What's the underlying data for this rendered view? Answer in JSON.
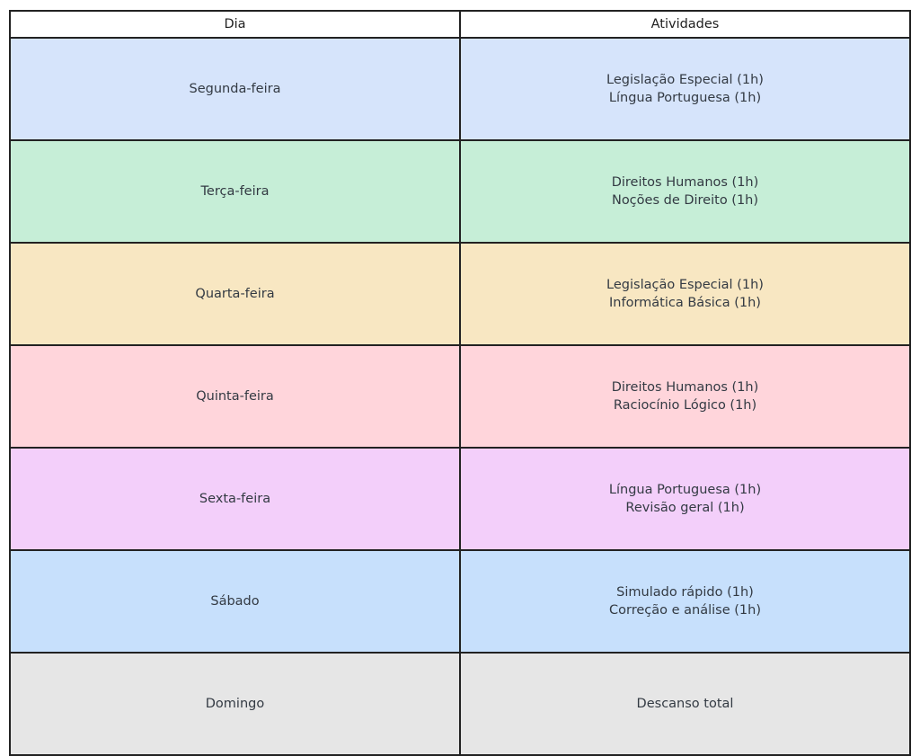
{
  "table": {
    "headers": {
      "dia": "Dia",
      "atividades": "Atividades"
    },
    "rows": [
      {
        "day": "Segunda-feira",
        "activities": [
          "Legislação Especial (1h)",
          "Língua Portuguesa (1h)"
        ],
        "bg": "#d6e4fb"
      },
      {
        "day": "Terça-feira",
        "activities": [
          "Direitos Humanos (1h)",
          "Noções de Direito (1h)"
        ],
        "bg": "#c6eed7"
      },
      {
        "day": "Quarta-feira",
        "activities": [
          "Legislação Especial (1h)",
          "Informática Básica (1h)"
        ],
        "bg": "#f8e7c2"
      },
      {
        "day": "Quinta-feira",
        "activities": [
          "Direitos Humanos (1h)",
          "Raciocínio Lógico (1h)"
        ],
        "bg": "#ffd5db"
      },
      {
        "day": "Sexta-feira",
        "activities": [
          "Língua Portuguesa (1h)",
          "Revisão geral (1h)"
        ],
        "bg": "#f3cffa"
      },
      {
        "day": "Sábado",
        "activities": [
          "Simulado rápido (1h)",
          "Correção e análise (1h)"
        ],
        "bg": "#c7e0fc"
      },
      {
        "day": "Domingo",
        "activities": [
          "Descanso total"
        ],
        "bg": "#e6e6e6"
      }
    ],
    "colors": {
      "border": "#222222",
      "header_bg": "#ffffff",
      "text": "#333a43"
    }
  }
}
